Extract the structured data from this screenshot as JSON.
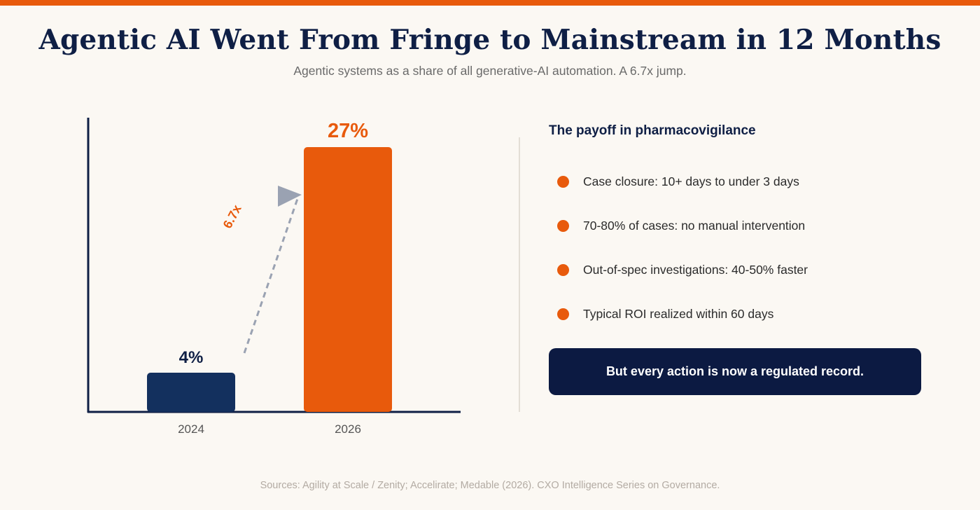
{
  "header": {
    "title": "Agentic AI Went From Fringe to Mainstream in 12 Months",
    "subtitle": "Agentic systems as a share of all generative-AI automation. A 6.7x jump."
  },
  "chart_data": {
    "type": "bar",
    "categories": [
      "2024",
      "2026"
    ],
    "values": [
      4,
      27
    ],
    "value_labels": [
      "4%",
      "27%"
    ],
    "colors": [
      "#13305e",
      "#e85a0c"
    ],
    "annotation": "6.7x",
    "grid": false,
    "legend": "none"
  },
  "payoff": {
    "title": "The payoff in pharmacovigilance",
    "items": [
      "Case closure: 10+ days to under 3 days",
      "70-80% of cases: no manual intervention",
      "Out-of-spec investigations: 40-50% faster",
      "Typical ROI realized within 60 days"
    ],
    "callout": "But every action is now a regulated record."
  },
  "footer": {
    "sources": "Sources: Agility at Scale / Zenity; Accelirate; Medable (2026). CXO Intelligence Series on Governance."
  },
  "colors": {
    "accent": "#e85a0c",
    "navy": "#0f1f45",
    "background": "#fbf8f3"
  }
}
